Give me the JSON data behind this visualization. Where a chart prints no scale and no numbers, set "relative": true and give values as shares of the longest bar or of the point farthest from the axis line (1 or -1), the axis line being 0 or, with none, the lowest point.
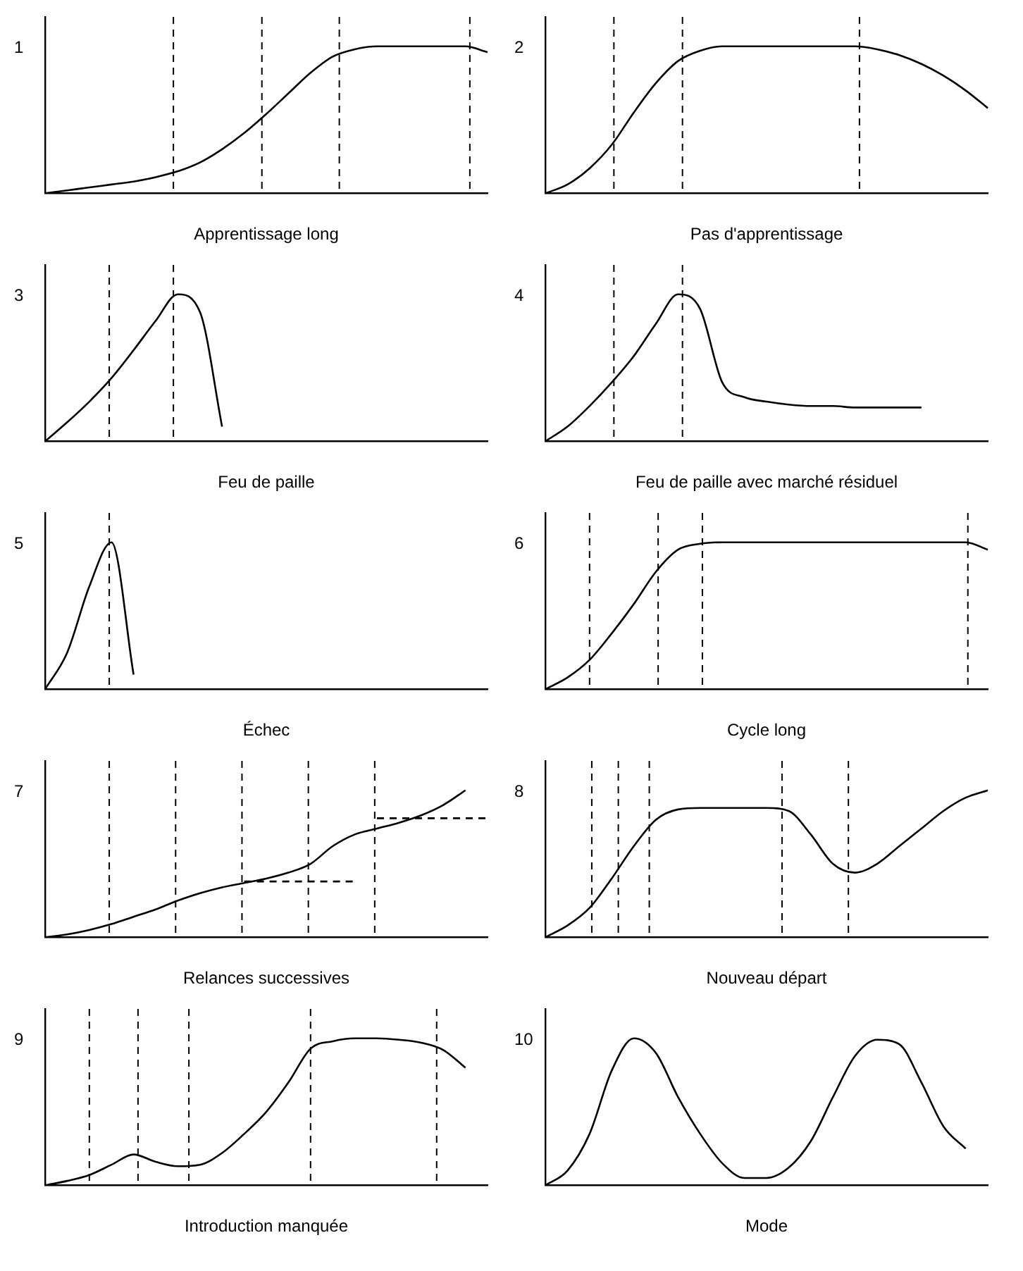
{
  "chart_data": [
    {
      "type": "line",
      "title": "1",
      "xlabel": "Apprentissage long",
      "relative": true,
      "grid": false,
      "legend": false,
      "marker": "none",
      "categories": [
        null,
        null,
        null,
        null,
        null,
        null,
        null,
        null,
        null,
        null,
        null,
        null,
        null,
        null,
        null,
        null,
        null,
        null,
        null,
        null,
        null
      ],
      "series": [
        {
          "color": "#000000",
          "values": [
            0,
            0.02,
            0.04,
            0.06,
            0.08,
            0.11,
            0.15,
            0.21,
            0.3,
            0.41,
            0.54,
            0.68,
            0.82,
            0.93,
            0.98,
            1,
            1,
            1,
            1,
            1,
            0.96
          ]
        }
      ]
    },
    {
      "type": "line",
      "title": "2",
      "xlabel": "Pas d'apprentissage",
      "relative": true,
      "grid": false,
      "legend": false,
      "marker": "none",
      "categories": [
        null,
        null,
        null,
        null,
        null,
        null,
        null,
        null,
        null,
        null,
        null,
        null,
        null,
        null,
        null,
        null,
        null,
        null,
        null,
        null,
        null
      ],
      "series": [
        {
          "color": "#000000",
          "values": [
            0,
            0.06,
            0.17,
            0.33,
            0.55,
            0.75,
            0.9,
            0.97,
            1,
            1,
            1,
            1,
            1,
            1,
            1,
            0.98,
            0.94,
            0.88,
            0.8,
            0.7,
            0.58
          ]
        }
      ]
    },
    {
      "type": "line",
      "title": "3",
      "xlabel": "Feu de paille",
      "relative": true,
      "grid": false,
      "legend": false,
      "marker": "none",
      "categories": [
        null,
        null,
        null,
        null,
        null,
        null,
        null,
        null,
        null,
        null,
        null,
        null,
        null,
        null,
        null,
        null,
        null,
        null,
        null,
        null,
        null
      ],
      "series": [
        {
          "color": "#000000",
          "values": [
            0,
            0.13,
            0.27,
            0.43,
            0.62,
            0.82,
            1,
            0.88,
            0.1,
            null,
            null,
            null,
            null,
            null,
            null,
            null,
            null,
            null,
            null,
            null,
            null
          ]
        }
      ]
    },
    {
      "type": "line",
      "title": "4",
      "xlabel": "Feu de paille avec marché résiduel",
      "relative": true,
      "grid": false,
      "legend": false,
      "marker": "none",
      "categories": [
        null,
        null,
        null,
        null,
        null,
        null,
        null,
        null,
        null,
        null,
        null,
        null,
        null,
        null,
        null,
        null,
        null,
        null,
        null,
        null,
        null
      ],
      "series": [
        {
          "color": "#000000",
          "values": [
            0,
            0.1,
            0.24,
            0.4,
            0.58,
            0.8,
            1,
            0.9,
            0.4,
            0.3,
            0.27,
            0.25,
            0.24,
            0.24,
            0.23,
            0.23,
            0.23,
            0.23,
            null,
            null,
            null
          ]
        }
      ]
    },
    {
      "type": "line",
      "title": "5",
      "xlabel": "Échec",
      "relative": true,
      "grid": false,
      "legend": false,
      "marker": "none",
      "categories": [
        null,
        null,
        null,
        null,
        null,
        null,
        null,
        null,
        null,
        null,
        null,
        null,
        null,
        null,
        null,
        null,
        null,
        null,
        null,
        null,
        null
      ],
      "series": [
        {
          "color": "#000000",
          "values": [
            0,
            0.25,
            0.7,
            1,
            0.1,
            null,
            null,
            null,
            null,
            null,
            null,
            null,
            null,
            null,
            null,
            null,
            null,
            null,
            null,
            null,
            null
          ]
        }
      ]
    },
    {
      "type": "line",
      "title": "6",
      "xlabel": "Cycle long",
      "relative": true,
      "grid": false,
      "legend": false,
      "marker": "none",
      "categories": [
        null,
        null,
        null,
        null,
        null,
        null,
        null,
        null,
        null,
        null,
        null,
        null,
        null,
        null,
        null,
        null,
        null,
        null,
        null,
        null,
        null
      ],
      "series": [
        {
          "color": "#000000",
          "values": [
            0,
            0.08,
            0.2,
            0.38,
            0.58,
            0.8,
            0.95,
            0.99,
            1,
            1,
            1,
            1,
            1,
            1,
            1,
            1,
            1,
            1,
            1,
            1,
            0.95
          ]
        }
      ]
    },
    {
      "type": "line",
      "title": "7",
      "xlabel": "Relances successives",
      "relative": true,
      "grid": false,
      "legend": false,
      "marker": "none",
      "categories": [
        null,
        null,
        null,
        null,
        null,
        null,
        null,
        null,
        null,
        null,
        null,
        null,
        null,
        null,
        null,
        null,
        null,
        null,
        null,
        null,
        null
      ],
      "series": [
        {
          "color": "#000000",
          "values": [
            0,
            0.02,
            0.05,
            0.09,
            0.14,
            0.19,
            0.25,
            0.3,
            0.34,
            0.37,
            0.4,
            0.44,
            0.5,
            0.62,
            0.7,
            0.74,
            0.78,
            0.83,
            0.9,
            1,
            null
          ]
        },
        {
          "color": "#000000",
          "line_style": "dashed",
          "values": [
            null,
            null,
            null,
            null,
            null,
            null,
            null,
            null,
            null,
            0.38,
            0.38,
            0.38,
            0.38,
            0.38,
            0.38,
            null,
            null,
            null,
            null,
            null,
            null
          ]
        },
        {
          "color": "#000000",
          "line_style": "dashed",
          "values": [
            null,
            null,
            null,
            null,
            null,
            null,
            null,
            null,
            null,
            null,
            null,
            null,
            null,
            null,
            null,
            0.81,
            0.81,
            0.81,
            0.81,
            0.81,
            0.81
          ]
        }
      ]
    },
    {
      "type": "line",
      "title": "8",
      "xlabel": "Nouveau départ",
      "relative": true,
      "grid": false,
      "legend": false,
      "marker": "none",
      "categories": [
        null,
        null,
        null,
        null,
        null,
        null,
        null,
        null,
        null,
        null,
        null,
        null,
        null,
        null,
        null,
        null,
        null,
        null,
        null,
        null,
        null
      ],
      "series": [
        {
          "color": "#000000",
          "values": [
            0,
            0.08,
            0.2,
            0.4,
            0.62,
            0.8,
            0.87,
            0.88,
            0.88,
            0.88,
            0.88,
            0.86,
            0.7,
            0.5,
            0.44,
            0.5,
            0.62,
            0.74,
            0.86,
            0.95,
            1
          ]
        }
      ]
    },
    {
      "type": "line",
      "title": "9",
      "xlabel": "Introduction manquée",
      "relative": true,
      "grid": false,
      "legend": false,
      "marker": "none",
      "categories": [
        null,
        null,
        null,
        null,
        null,
        null,
        null,
        null,
        null,
        null,
        null,
        null,
        null,
        null,
        null,
        null,
        null,
        null,
        null,
        null,
        null
      ],
      "series": [
        {
          "color": "#000000",
          "values": [
            0,
            0.03,
            0.07,
            0.14,
            0.21,
            0.16,
            0.13,
            0.14,
            0.22,
            0.35,
            0.5,
            0.7,
            0.93,
            0.98,
            1,
            1,
            0.99,
            0.97,
            0.92,
            0.8,
            null
          ]
        }
      ]
    },
    {
      "type": "line",
      "title": "10",
      "xlabel": "Mode",
      "relative": true,
      "grid": false,
      "legend": false,
      "marker": "none",
      "categories": [
        null,
        null,
        null,
        null,
        null,
        null,
        null,
        null,
        null,
        null,
        null,
        null,
        null,
        null,
        null,
        null,
        null,
        null,
        null,
        null,
        null
      ],
      "series": [
        {
          "color": "#000000",
          "values": [
            0,
            0.1,
            0.35,
            0.78,
            1,
            0.9,
            0.6,
            0.35,
            0.15,
            0.05,
            0.05,
            0.12,
            0.3,
            0.6,
            0.88,
            0.99,
            0.96,
            0.7,
            0.4,
            0.25,
            null
          ]
        }
      ]
    }
  ]
}
